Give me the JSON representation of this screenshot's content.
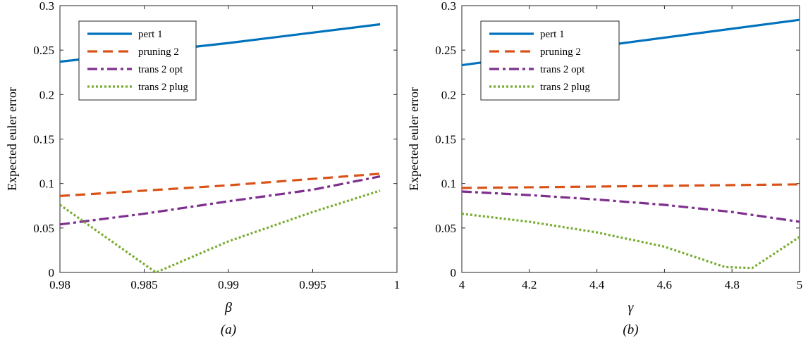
{
  "chart_data": [
    {
      "type": "line",
      "caption": "(a)",
      "xlabel": "β",
      "ylabel": "Expected euler error",
      "xlim": [
        0.98,
        1.0
      ],
      "ylim": [
        0,
        0.3
      ],
      "xticks": [
        0.98,
        0.985,
        0.99,
        0.995,
        1.0
      ],
      "xtick_labels": [
        "0.98",
        "0.985",
        "0.99",
        "0.995",
        "1"
      ],
      "yticks": [
        0,
        0.05,
        0.1,
        0.15,
        0.2,
        0.25,
        0.3
      ],
      "ytick_labels": [
        "0",
        "0.05",
        "0.1",
        "0.15",
        "0.2",
        "0.25",
        "0.3"
      ],
      "grid": false,
      "legend_position": "top-left",
      "series": [
        {
          "name": "pert 1",
          "color": "#0072BD",
          "dash": "solid",
          "x": [
            0.98,
            0.99,
            0.999
          ],
          "y": [
            0.237,
            0.258,
            0.279
          ]
        },
        {
          "name": "pruning 2",
          "color": "#D95319",
          "dash": "dashed",
          "x": [
            0.98,
            0.99,
            0.999
          ],
          "y": [
            0.086,
            0.098,
            0.111
          ]
        },
        {
          "name": "trans 2 opt",
          "color": "#7E2F8E",
          "dash": "dashdot",
          "x": [
            0.98,
            0.985,
            0.99,
            0.995,
            0.999
          ],
          "y": [
            0.054,
            0.066,
            0.08,
            0.093,
            0.108
          ]
        },
        {
          "name": "trans 2 plug",
          "color": "#77AC30",
          "dash": "dotted",
          "x": [
            0.98,
            0.9857,
            0.99,
            0.995,
            0.999
          ],
          "y": [
            0.076,
            0.0,
            0.035,
            0.068,
            0.092
          ]
        }
      ]
    },
    {
      "type": "line",
      "caption": "(b)",
      "xlabel": "γ",
      "ylabel": "Expected euler error",
      "xlim": [
        4,
        5
      ],
      "ylim": [
        0,
        0.3
      ],
      "xticks": [
        4,
        4.2,
        4.4,
        4.6,
        4.8,
        5
      ],
      "xtick_labels": [
        "4",
        "4.2",
        "4.4",
        "4.6",
        "4.8",
        "5"
      ],
      "yticks": [
        0,
        0.05,
        0.1,
        0.15,
        0.2,
        0.25,
        0.3
      ],
      "ytick_labels": [
        "0",
        "0.05",
        "0.1",
        "0.15",
        "0.2",
        "0.25",
        "0.3"
      ],
      "grid": false,
      "legend_position": "top-left",
      "series": [
        {
          "name": "pert 1",
          "color": "#0072BD",
          "dash": "solid",
          "x": [
            4,
            4.5,
            5
          ],
          "y": [
            0.233,
            0.259,
            0.284
          ]
        },
        {
          "name": "pruning 2",
          "color": "#D95319",
          "dash": "dashed",
          "x": [
            4,
            4.5,
            5
          ],
          "y": [
            0.095,
            0.097,
            0.099
          ]
        },
        {
          "name": "trans 2 opt",
          "color": "#7E2F8E",
          "dash": "dashdot",
          "x": [
            4,
            4.2,
            4.4,
            4.6,
            4.8,
            5
          ],
          "y": [
            0.091,
            0.087,
            0.082,
            0.076,
            0.068,
            0.057
          ]
        },
        {
          "name": "trans 2 plug",
          "color": "#77AC30",
          "dash": "dotted",
          "x": [
            4,
            4.2,
            4.4,
            4.6,
            4.78,
            4.86,
            5
          ],
          "y": [
            0.066,
            0.057,
            0.045,
            0.029,
            0.006,
            0.005,
            0.04
          ]
        }
      ]
    }
  ]
}
